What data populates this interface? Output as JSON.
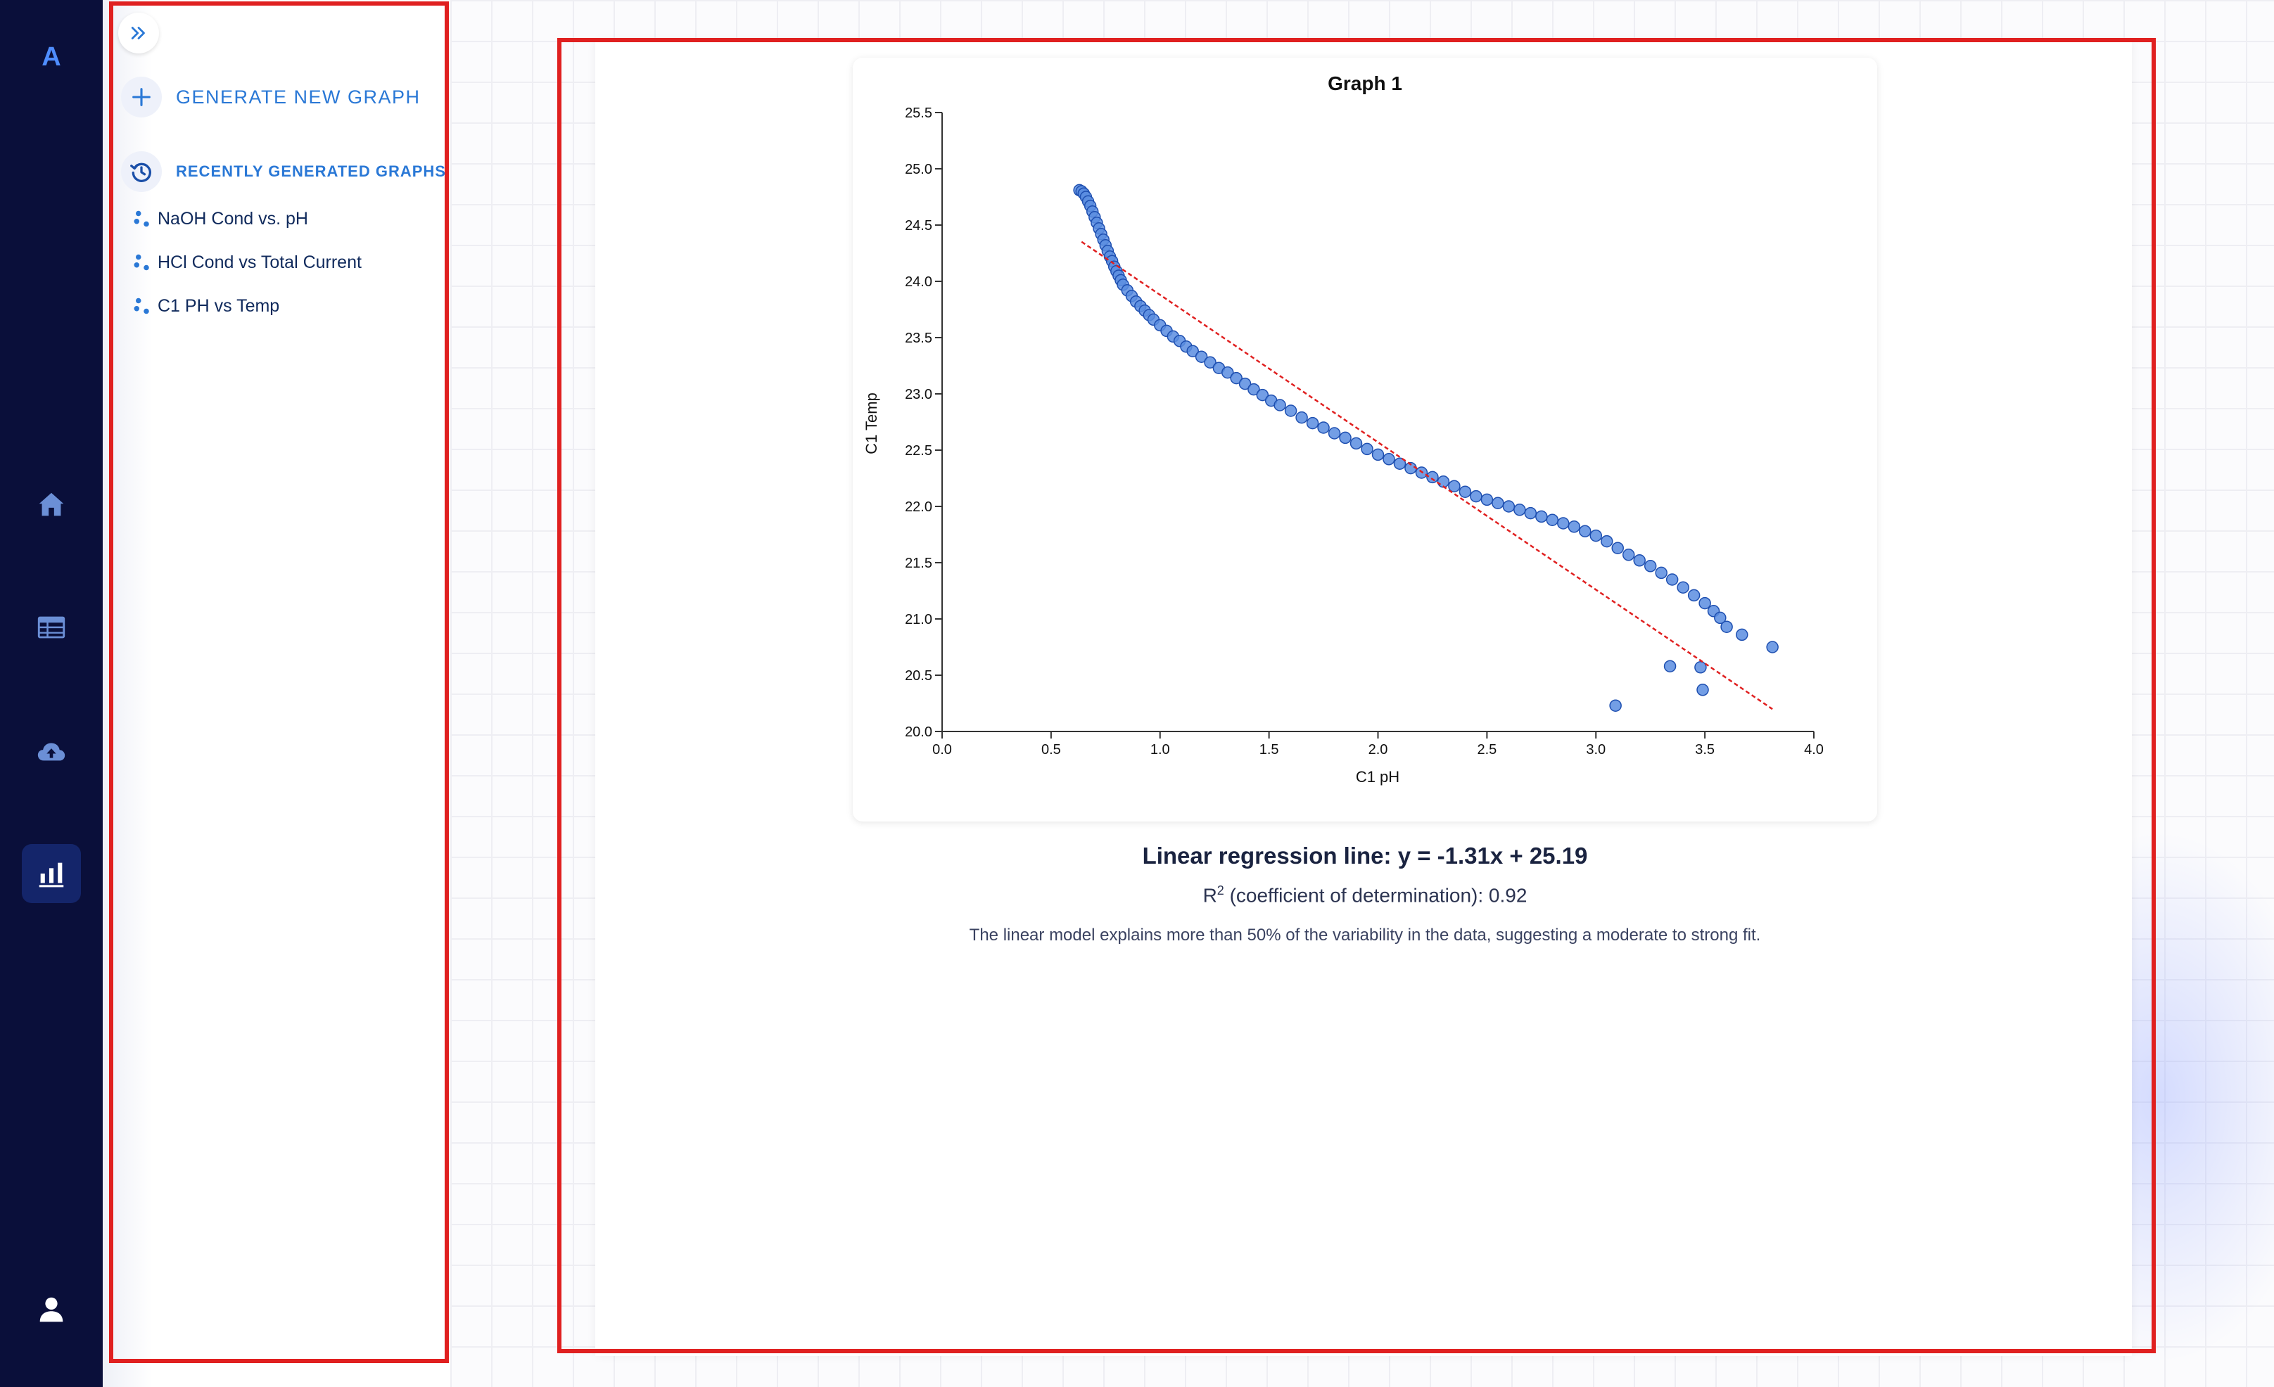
{
  "rail": {
    "logo": "A",
    "icons": [
      "home-icon",
      "table-icon",
      "cloud-upload-icon",
      "bar-chart-icon",
      "user-icon"
    ],
    "active": "bar-chart-icon"
  },
  "sidebar": {
    "generate_label": "GENERATE NEW GRAPH",
    "recent_label": "RECENTLY GENERATED GRAPHS",
    "items": [
      {
        "label": "NaOH Cond vs. pH"
      },
      {
        "label": "HCl Cond vs Total Current"
      },
      {
        "label": "C1 PH vs Temp"
      }
    ]
  },
  "results": {
    "regression": "Linear regression line: y = -1.31x + 25.19",
    "r2_base": "R",
    "r2_sup": "2",
    "r2_text": " (coefficient of determination): 0.92",
    "description": "The linear model explains more than 50% of the variability in the data, suggesting a moderate to strong fit."
  },
  "colors": {
    "accent": "#2a78d6",
    "point_fill": "#5b8de0",
    "point_stroke": "#1e4fb0",
    "regression_line": "#e02020",
    "rail_bg": "#0a0f3a"
  },
  "chart_data": {
    "type": "scatter",
    "title": "Graph 1",
    "xlabel": "C1 pH",
    "ylabel": "C1 Temp",
    "xlim": [
      0.0,
      4.0
    ],
    "ylim": [
      20.0,
      25.5
    ],
    "xticks": [
      "0.0",
      "0.5",
      "1.0",
      "1.5",
      "2.0",
      "2.5",
      "3.0",
      "3.5",
      "4.0"
    ],
    "yticks": [
      "20.0",
      "20.5",
      "21.0",
      "21.5",
      "22.0",
      "22.5",
      "23.0",
      "23.5",
      "24.0",
      "24.5",
      "25.0",
      "25.5"
    ],
    "grid": false,
    "points": [
      [
        0.63,
        24.81
      ],
      [
        0.64,
        24.8
      ],
      [
        0.65,
        24.78
      ],
      [
        0.66,
        24.75
      ],
      [
        0.67,
        24.71
      ],
      [
        0.68,
        24.67
      ],
      [
        0.69,
        24.62
      ],
      [
        0.7,
        24.57
      ],
      [
        0.71,
        24.52
      ],
      [
        0.72,
        24.47
      ],
      [
        0.73,
        24.42
      ],
      [
        0.74,
        24.37
      ],
      [
        0.75,
        24.32
      ],
      [
        0.76,
        24.27
      ],
      [
        0.77,
        24.22
      ],
      [
        0.78,
        24.18
      ],
      [
        0.79,
        24.13
      ],
      [
        0.8,
        24.09
      ],
      [
        0.81,
        24.05
      ],
      [
        0.82,
        24.01
      ],
      [
        0.83,
        23.97
      ],
      [
        0.85,
        23.92
      ],
      [
        0.87,
        23.87
      ],
      [
        0.89,
        23.82
      ],
      [
        0.91,
        23.78
      ],
      [
        0.93,
        23.74
      ],
      [
        0.95,
        23.7
      ],
      [
        0.97,
        23.66
      ],
      [
        1.0,
        23.61
      ],
      [
        1.03,
        23.56
      ],
      [
        1.06,
        23.51
      ],
      [
        1.09,
        23.47
      ],
      [
        1.12,
        23.42
      ],
      [
        1.15,
        23.38
      ],
      [
        1.19,
        23.33
      ],
      [
        1.23,
        23.28
      ],
      [
        1.27,
        23.23
      ],
      [
        1.31,
        23.19
      ],
      [
        1.35,
        23.14
      ],
      [
        1.39,
        23.09
      ],
      [
        1.43,
        23.04
      ],
      [
        1.47,
        22.99
      ],
      [
        1.51,
        22.94
      ],
      [
        1.55,
        22.9
      ],
      [
        1.6,
        22.85
      ],
      [
        1.65,
        22.79
      ],
      [
        1.7,
        22.74
      ],
      [
        1.75,
        22.7
      ],
      [
        1.8,
        22.65
      ],
      [
        1.85,
        22.61
      ],
      [
        1.9,
        22.56
      ],
      [
        1.95,
        22.51
      ],
      [
        2.0,
        22.46
      ],
      [
        2.05,
        22.42
      ],
      [
        2.1,
        22.38
      ],
      [
        2.15,
        22.34
      ],
      [
        2.2,
        22.3
      ],
      [
        2.25,
        22.26
      ],
      [
        2.3,
        22.22
      ],
      [
        2.35,
        22.18
      ],
      [
        2.4,
        22.13
      ],
      [
        2.45,
        22.09
      ],
      [
        2.5,
        22.06
      ],
      [
        2.55,
        22.03
      ],
      [
        2.6,
        22.0
      ],
      [
        2.65,
        21.97
      ],
      [
        2.7,
        21.94
      ],
      [
        2.75,
        21.91
      ],
      [
        2.8,
        21.88
      ],
      [
        2.85,
        21.85
      ],
      [
        2.9,
        21.82
      ],
      [
        2.95,
        21.78
      ],
      [
        3.0,
        21.74
      ],
      [
        3.05,
        21.69
      ],
      [
        3.1,
        21.63
      ],
      [
        3.15,
        21.57
      ],
      [
        3.2,
        21.52
      ],
      [
        3.25,
        21.47
      ],
      [
        3.3,
        21.41
      ],
      [
        3.35,
        21.35
      ],
      [
        3.4,
        21.28
      ],
      [
        3.45,
        21.21
      ],
      [
        3.5,
        21.14
      ],
      [
        3.54,
        21.07
      ],
      [
        3.57,
        21.01
      ],
      [
        3.6,
        20.93
      ],
      [
        3.67,
        20.86
      ],
      [
        3.81,
        20.75
      ],
      [
        3.34,
        20.58
      ],
      [
        3.48,
        20.57
      ],
      [
        3.49,
        20.37
      ],
      [
        3.09,
        20.23
      ]
    ],
    "regression": {
      "slope": -1.31,
      "intercept": 25.19,
      "x_range": [
        0.64,
        3.81
      ]
    }
  }
}
